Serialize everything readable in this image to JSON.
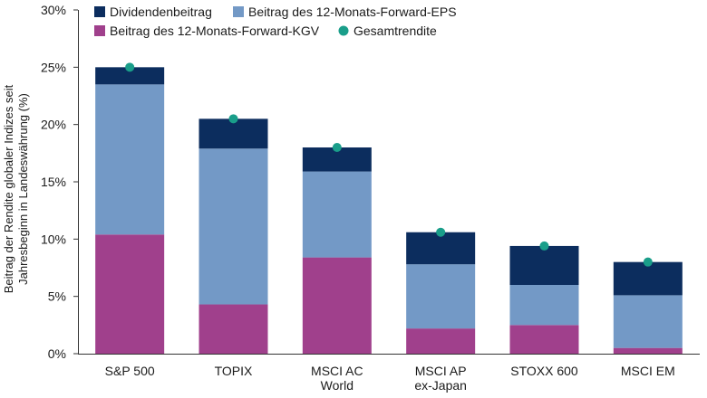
{
  "colors": {
    "dividend": "#0c2d5e",
    "eps": "#7399c6",
    "pe": "#a0408c",
    "total": "#1a9e8a",
    "axis": "#333333"
  },
  "chart_data": {
    "type": "bar",
    "stacked": true,
    "title": "",
    "xlabel": "",
    "ylabel": "Beitrag der Rendite globaler Indizes seit Jahresbeginn in Landeswährung (%)",
    "ylabel_lines": [
      "Beitrag der Rendite globaler Indizes seit",
      "Jahresbeginn in Landeswährung (%)"
    ],
    "ylim": [
      0,
      30
    ],
    "yticks": [
      0,
      5,
      10,
      15,
      20,
      25,
      30
    ],
    "ytick_labels": [
      "0%",
      "5%",
      "10%",
      "15%",
      "20%",
      "25%",
      "30%"
    ],
    "grid": false,
    "legend_position": "top",
    "categories": [
      [
        "S&P 500"
      ],
      [
        "TOPIX"
      ],
      [
        "MSCI AC",
        "World"
      ],
      [
        "MSCI AP",
        "ex-Japan"
      ],
      [
        "STOXX 600"
      ],
      [
        "MSCI EM"
      ]
    ],
    "series": [
      {
        "name": "Beitrag des 12-Monats-Forward-KGV",
        "key": "pe",
        "values": [
          10.4,
          4.3,
          8.4,
          2.2,
          2.5,
          0.5
        ]
      },
      {
        "name": "Beitrag des 12-Monats-Forward-EPS",
        "key": "eps",
        "values": [
          13.1,
          13.6,
          7.5,
          5.6,
          3.5,
          4.6
        ]
      },
      {
        "name": "Dividendenbeitrag",
        "key": "dividend",
        "values": [
          1.5,
          2.6,
          2.1,
          2.8,
          3.4,
          2.9
        ]
      }
    ],
    "total_series": {
      "name": "Gesamtrendite",
      "key": "total",
      "values": [
        25.0,
        20.5,
        18.0,
        10.6,
        9.4,
        8.0
      ]
    },
    "legend": [
      {
        "name": "Dividendenbeitrag",
        "key": "dividend",
        "marker": "square"
      },
      {
        "name": "Beitrag des 12-Monats-Forward-EPS",
        "key": "eps",
        "marker": "square"
      },
      {
        "name": "Beitrag des 12-Monats-Forward-KGV",
        "key": "pe",
        "marker": "square"
      },
      {
        "name": "Gesamtrendite",
        "key": "total",
        "marker": "circle"
      }
    ]
  }
}
